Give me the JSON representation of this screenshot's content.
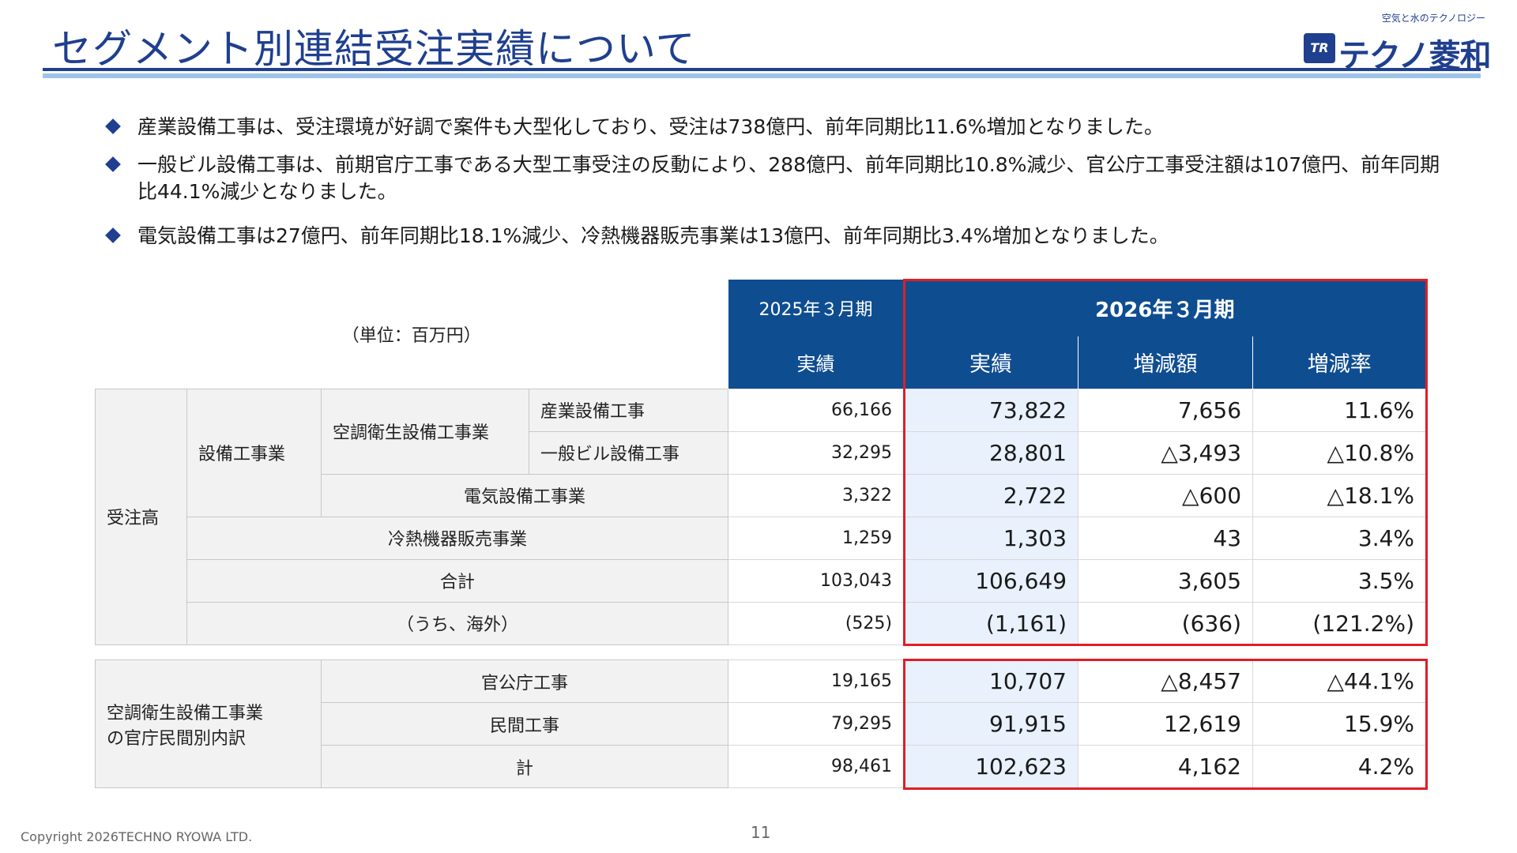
{
  "header": {
    "title": "セグメント別連結受注実績について",
    "logo_tagline": "空気と水のテクノロジー",
    "logo_mark": "TR",
    "logo_name": "テクノ菱和"
  },
  "bullets": [
    "産業設備工事は、受注環境が好調で案件も大型化しており、受注は738億円、前年同期比11.6%増加となりました。",
    "一般ビル設備工事は、前期官庁工事である大型工事受注の反動により、288億円、前年同期比10.8%減少、官公庁工事受注額は107億円、前年同期比44.1%減少となりました。",
    "電気設備工事は27億円、前年同期比18.1%減少、冷熱機器販売事業は13億円、前年同期比3.4%増加となりました。"
  ],
  "table_header": {
    "unit": "（単位：百万円）",
    "prev_period": "2025年３月期",
    "cur_period": "2026年３月期",
    "col_actual_prev": "実績",
    "col_actual_cur": "実績",
    "col_change_amount": "増減額",
    "col_change_rate": "増減率"
  },
  "orders_table": {
    "group_label": "受注高",
    "facility_label": "設備工事業",
    "hvac_label": "空調衛生設備工事業",
    "rows": [
      {
        "label": "産業設備工事",
        "prev": "66,166",
        "cur": "73,822",
        "amount": "7,656",
        "rate": "11.6%"
      },
      {
        "label": "一般ビル設備工事",
        "prev": "32,295",
        "cur": "28,801",
        "amount": "△3,493",
        "rate": "△10.8%"
      },
      {
        "label": "電気設備工事業",
        "prev": "3,322",
        "cur": "2,722",
        "amount": "△600",
        "rate": "△18.1%"
      },
      {
        "label": "冷熱機器販売事業",
        "prev": "1,259",
        "cur": "1,303",
        "amount": "43",
        "rate": "3.4%"
      },
      {
        "label": "合計",
        "prev": "103,043",
        "cur": "106,649",
        "amount": "3,605",
        "rate": "3.5%"
      },
      {
        "label": "（うち、海外）",
        "prev": "(525)",
        "cur": "(1,161)",
        "amount": "(636)",
        "rate": "(121.2%)"
      }
    ]
  },
  "breakdown_table": {
    "group_label_line1": "空調衛生設備工事業",
    "group_label_line2": "の官庁民間別内訳",
    "rows": [
      {
        "label": "官公庁工事",
        "prev": "19,165",
        "cur": "10,707",
        "amount": "△8,457",
        "rate": "△44.1%"
      },
      {
        "label": "民間工事",
        "prev": "79,295",
        "cur": "91,915",
        "amount": "12,619",
        "rate": "15.9%"
      },
      {
        "label": "計",
        "prev": "98,461",
        "cur": "102,623",
        "amount": "4,162",
        "rate": "4.2%"
      }
    ]
  },
  "footer": {
    "copyright": "Copyright 2026TECHNO RYOWA LTD.",
    "page_number": "11"
  },
  "colors": {
    "title": "#1f3f8f",
    "table_header": "#0f4d91",
    "highlight_border": "#e01e25",
    "current_column_fill": "#e8f1fc"
  }
}
